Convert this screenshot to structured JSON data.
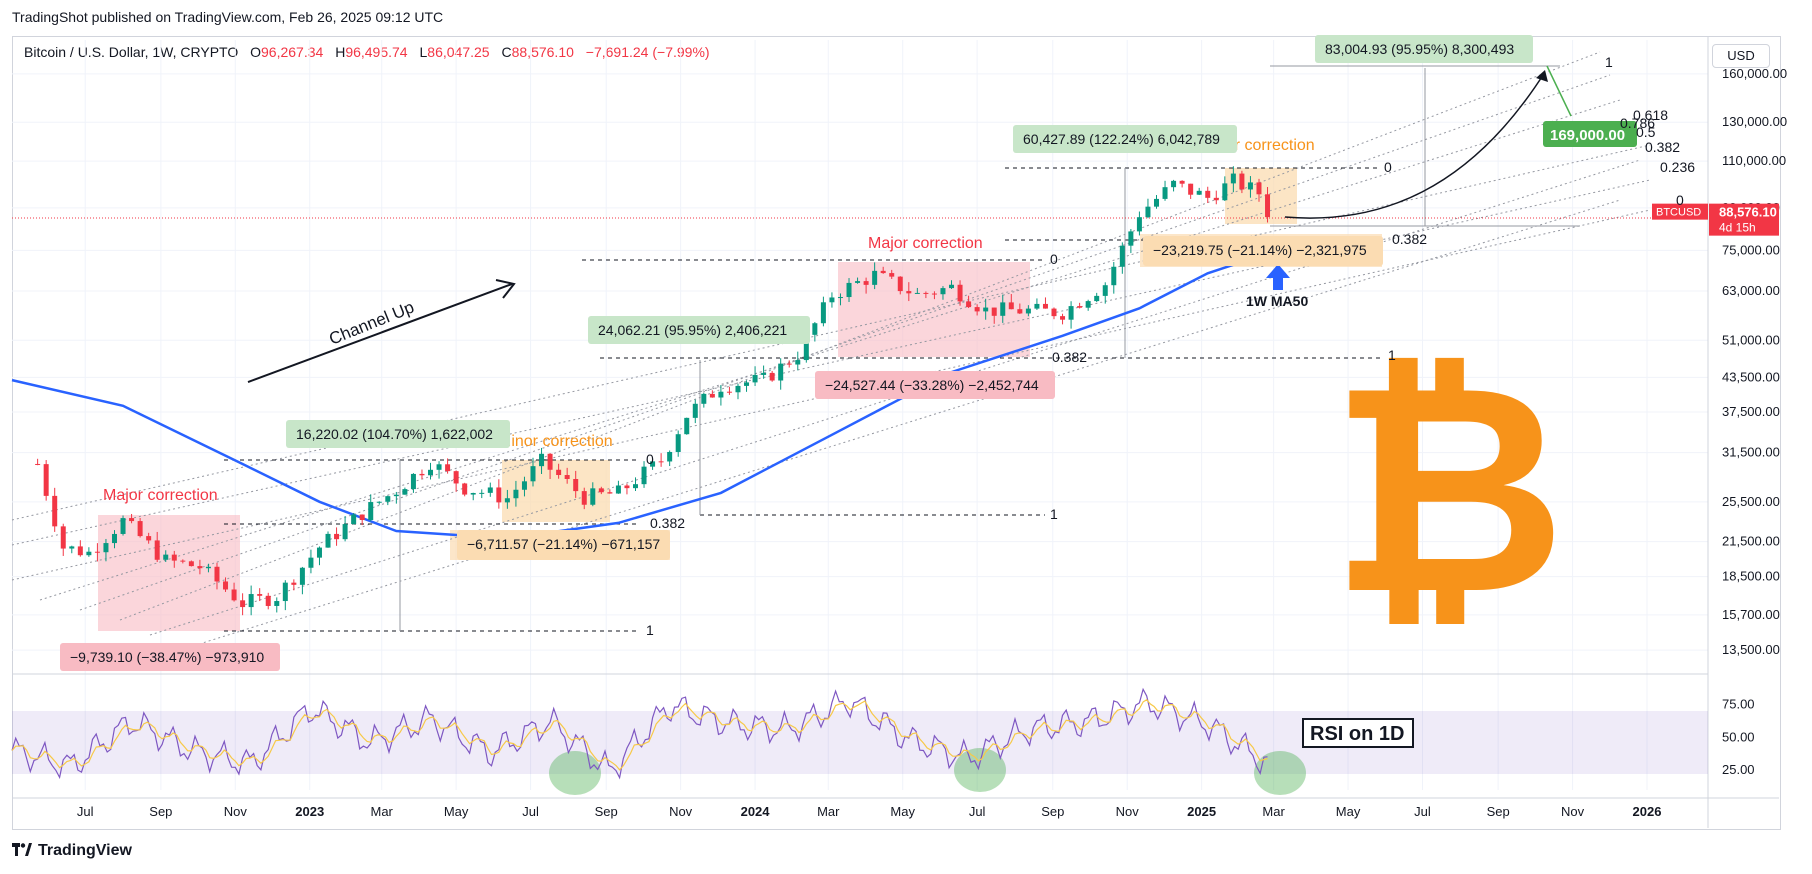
{
  "header": {
    "published": "TradingShot published on TradingView.com, Feb 26, 2025 09:12 UTC"
  },
  "legend": {
    "symbol": "Bitcoin / U.S. Dollar, 1W, CRYPTO",
    "open_label": "O",
    "open": "96,267.34",
    "high_label": "H",
    "high": "96,495.74",
    "low_label": "L",
    "low": "86,047.25",
    "close_label": "C",
    "close": "88,576.10",
    "change": "−7,691.24 (−7.99%)"
  },
  "currency": "USD",
  "footer": {
    "brand": "TradingView"
  },
  "colors": {
    "up": "#089981",
    "down": "#f23645",
    "ma50": "#2962ff",
    "bitcoin": "#f7931a",
    "major_zone": "#f8bbc3",
    "minor_zone": "#fbdcb2"
  },
  "chart_data": {
    "type": "line",
    "title": "",
    "scale": "log",
    "ylim": [
      12500,
      185000
    ],
    "price_ticks": [
      "160,000.00",
      "130,000.00",
      "110,000.00",
      "90,000.00",
      "75,000.00",
      "63,000.00",
      "51,000.00",
      "43,500.00",
      "37,500.00",
      "31,500.00",
      "25,500.00",
      "21,500.00",
      "18,500.00",
      "15,700.00",
      "13,500.00"
    ],
    "price_tick_values": [
      160000,
      130000,
      110000,
      90000,
      75000,
      63000,
      51000,
      43500,
      37500,
      31500,
      25500,
      21500,
      18500,
      15700,
      13500
    ],
    "current_price": {
      "symbol": "BTCUSD",
      "value": "88,576.10",
      "countdown": "4d 15h"
    },
    "x_ticks": [
      "Jul",
      "Sep",
      "Nov",
      "2023",
      "Mar",
      "May",
      "Jul",
      "Sep",
      "Nov",
      "2024",
      "Mar",
      "May",
      "Jul",
      "Sep",
      "Nov",
      "2025",
      "Mar",
      "May",
      "Jul",
      "Sep",
      "Nov",
      "2026"
    ],
    "x_tick_dates": [
      "2022-07",
      "2022-09",
      "2022-11",
      "2023-01",
      "2023-03",
      "2023-05",
      "2023-07",
      "2023-09",
      "2023-11",
      "2024-01",
      "2024-03",
      "2024-05",
      "2024-07",
      "2024-09",
      "2024-11",
      "2025-01",
      "2025-03",
      "2025-05",
      "2025-07",
      "2025-09",
      "2025-11",
      "2026-01"
    ],
    "price_series": {
      "name": "BTCUSD",
      "x": [
        "2022-05-23",
        "2022-06-13",
        "2022-07-04",
        "2022-08-01",
        "2022-09-05",
        "2022-10-03",
        "2022-11-07",
        "2022-12-05",
        "2023-01-09",
        "2023-02-13",
        "2023-03-13",
        "2023-04-10",
        "2023-05-08",
        "2023-06-12",
        "2023-07-10",
        "2023-08-14",
        "2023-09-11",
        "2023-10-16",
        "2023-11-06",
        "2023-12-04",
        "2024-01-08",
        "2024-02-05",
        "2024-03-04",
        "2024-04-08",
        "2024-05-13",
        "2024-06-10",
        "2024-07-08",
        "2024-08-05",
        "2024-09-09",
        "2024-10-14",
        "2024-11-11",
        "2024-12-09",
        "2025-01-06",
        "2025-01-27",
        "2025-02-17",
        "2025-02-24"
      ],
      "values": [
        30000,
        21000,
        20500,
        23500,
        19800,
        19300,
        16500,
        17000,
        21000,
        24300,
        26800,
        30300,
        27100,
        25900,
        30300,
        26000,
        26500,
        30500,
        37000,
        42000,
        43000,
        48000,
        62000,
        67500,
        62000,
        64000,
        58000,
        58000,
        57500,
        65000,
        88000,
        99500,
        94000,
        101000,
        96000,
        88576
      ]
    },
    "ma50": {
      "name": "1W MA50",
      "x": [
        "2022-05-02",
        "2022-08-01",
        "2022-11-07",
        "2023-01-09",
        "2023-03-13",
        "2023-06-12",
        "2023-09-11",
        "2023-12-04",
        "2024-03-04",
        "2024-06-10",
        "2024-09-09",
        "2024-11-11",
        "2025-01-06",
        "2025-02-24"
      ],
      "values": [
        43000,
        38500,
        30000,
        25500,
        22500,
        21800,
        23300,
        26500,
        34000,
        44500,
        52000,
        58500,
        68000,
        74000
      ]
    },
    "rsi": {
      "name": "RSI on 1D",
      "ylim": [
        10,
        95
      ],
      "ticks": [
        75,
        50,
        25
      ],
      "band": [
        30,
        70
      ],
      "x": [
        "2022-05-02",
        "2022-06-20",
        "2022-08-08",
        "2022-09-26",
        "2022-11-14",
        "2023-01-02",
        "2023-02-20",
        "2023-04-10",
        "2023-05-29",
        "2023-07-17",
        "2023-09-04",
        "2023-10-23",
        "2023-12-11",
        "2024-01-29",
        "2024-03-18",
        "2024-05-06",
        "2024-06-24",
        "2024-08-12",
        "2024-09-30",
        "2024-11-18",
        "2025-01-06",
        "2025-02-24"
      ],
      "values": [
        40,
        28,
        62,
        40,
        30,
        72,
        46,
        64,
        38,
        62,
        24,
        74,
        60,
        56,
        78,
        48,
        34,
        56,
        62,
        76,
        60,
        30
      ],
      "highlighted_lows": [
        "2023-08-21",
        "2024-07-01",
        "2025-02-24"
      ]
    },
    "annotations": [
      "Major correction",
      "Minor correction",
      "Major correction",
      "Minor correction",
      "Channel Up",
      "1W MA50",
      "RSI on 1D",
      "169,000.00",
      "16,220.02 (104.70%) 1,622,002",
      "24,062.21 (95.95%) 2,406,221",
      "60,427.89 (122.24%) 6,042,789",
      "83,004.93 (95.95%) 8,300,493",
      "−9,739.10 (−38.47%) −973,910",
      "−6,711.57 (−21.14%) −671,157",
      "−24,527.44 (−33.28%) −2,452,744",
      "−23,219.75 (−21.14%) −2,321,975"
    ],
    "fib_levels": [
      "0",
      "0.382",
      "1",
      "0",
      "0.382",
      "1",
      "0",
      "0.382",
      "1",
      "0",
      "0.236",
      "0.382",
      "0.5",
      "0.618",
      "0.786",
      "1"
    ]
  }
}
